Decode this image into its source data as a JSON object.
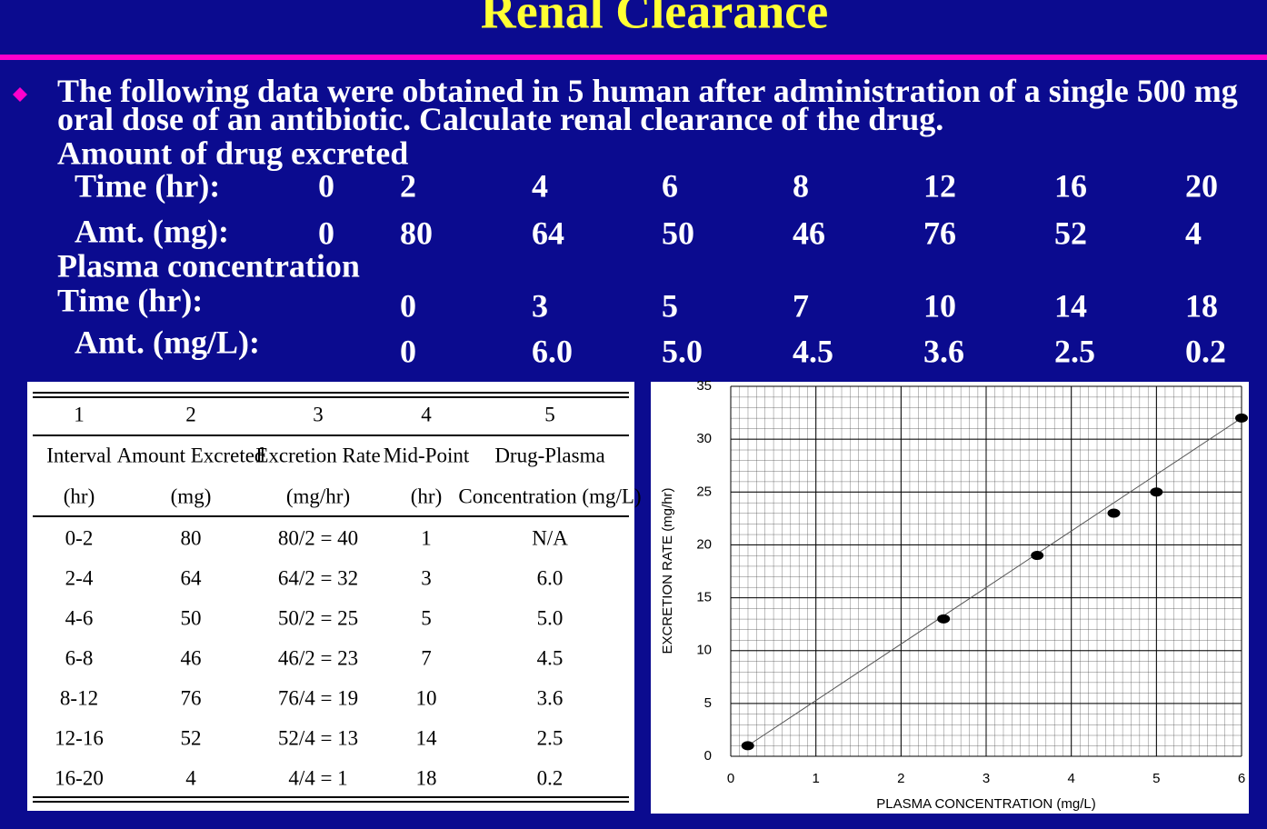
{
  "title": "Renal Clearance",
  "intro": "The following data were obtained in 5 human after administration of a single 500 mg oral dose of an antibiotic. Calculate renal clearance of the drug.",
  "excreted": {
    "heading": "Amount of drug excreted",
    "time_label": "Time (hr):",
    "times": [
      0,
      2,
      4,
      6,
      8,
      12,
      16,
      20
    ],
    "amount_label": "Amt. (mg):",
    "amounts": [
      0,
      80,
      64,
      50,
      46,
      76,
      52,
      4
    ]
  },
  "plasma": {
    "heading": "Plasma concentration",
    "time_label": "Time (hr):",
    "times": [
      0,
      3,
      5,
      7,
      10,
      14,
      18
    ],
    "conc_label": "Amt. (mg/L):",
    "concs": [
      "0",
      "6.0",
      "5.0",
      "4.5",
      "3.6",
      "2.5",
      "0.2"
    ]
  },
  "table": {
    "numbers": [
      "1",
      "2",
      "3",
      "4",
      "5"
    ],
    "headers": [
      [
        "Interval",
        "(hr)"
      ],
      [
        "Amount Excreted",
        "(mg)"
      ],
      [
        "Excretion Rate",
        "(mg/hr)"
      ],
      [
        "Mid-Point",
        "(hr)"
      ],
      [
        "Drug-Plasma",
        "Concentration (mg/L)"
      ]
    ],
    "rows": [
      [
        "0-2",
        "80",
        "80/2 = 40",
        "1",
        "N/A"
      ],
      [
        "2-4",
        "64",
        "64/2 = 32",
        "3",
        "6.0"
      ],
      [
        "4-6",
        "50",
        "50/2 = 25",
        "5",
        "5.0"
      ],
      [
        "6-8",
        "46",
        "46/2 = 23",
        "7",
        "4.5"
      ],
      [
        "8-12",
        "76",
        "76/4 = 19",
        "10",
        "3.6"
      ],
      [
        "12-16",
        "52",
        "52/4 = 13",
        "14",
        "2.5"
      ],
      [
        "16-20",
        "4",
        "4/4 = 1",
        "18",
        "0.2"
      ]
    ]
  },
  "chart_data": {
    "type": "scatter",
    "x_label": "PLASMA CONCENTRATION (mg/L)",
    "y_label": "EXCRETION RATE (mg/hr)",
    "x": [
      0.2,
      2.5,
      3.6,
      4.5,
      5.0,
      6.0
    ],
    "values": [
      1,
      13,
      19,
      23,
      25,
      32
    ],
    "color": "#000000",
    "xlim": [
      0,
      6
    ],
    "ylim": [
      0,
      35
    ],
    "xticks": [
      0,
      1,
      2,
      3,
      4,
      5,
      6
    ],
    "yticks": [
      0,
      5,
      10,
      15,
      20,
      25,
      30,
      35
    ],
    "grid": true
  }
}
